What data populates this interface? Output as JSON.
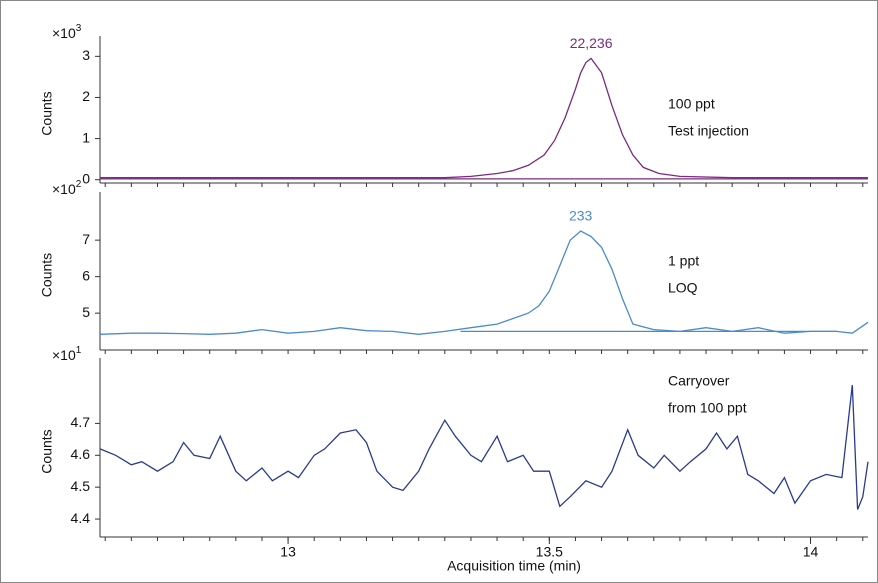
{
  "chart_data": [
    {
      "type": "line",
      "ylabel": "Counts",
      "y_multiplier": {
        "base": "×10",
        "exponent": "3"
      },
      "annotations": [
        "100 ppt",
        "Test injection"
      ],
      "peak_label": "22,236",
      "xlim": [
        12.64,
        14.11
      ],
      "ylim": [
        -0.08,
        3.3
      ],
      "yticks": [
        0,
        1,
        2,
        3
      ],
      "series": [
        {
          "color": "#7b2a7e",
          "x": [
            12.64,
            13.0,
            13.3,
            13.35,
            13.4,
            13.43,
            13.46,
            13.49,
            13.51,
            13.53,
            13.55,
            13.56,
            13.57,
            13.58,
            13.6,
            13.62,
            13.64,
            13.66,
            13.68,
            13.71,
            13.75,
            13.85,
            14.11
          ],
          "values": [
            0.05,
            0.05,
            0.05,
            0.08,
            0.15,
            0.22,
            0.35,
            0.6,
            0.95,
            1.5,
            2.2,
            2.6,
            2.85,
            2.95,
            2.6,
            1.8,
            1.1,
            0.6,
            0.3,
            0.15,
            0.08,
            0.05,
            0.05
          ]
        },
        {
          "color": "#7b2a7e",
          "x": [
            12.64,
            14.11
          ],
          "values": [
            0.02,
            0.02
          ]
        }
      ]
    },
    {
      "type": "line",
      "ylabel": "Counts",
      "y_multiplier": {
        "base": "×10",
        "exponent": "2"
      },
      "annotations": [
        "1 ppt",
        "LOQ"
      ],
      "peak_label": "233",
      "xlim": [
        12.64,
        14.11
      ],
      "ylim": [
        3.99,
        8.1
      ],
      "yticks": [
        5,
        6,
        7
      ],
      "series": [
        {
          "color": "#4a8cc9",
          "x": [
            12.64,
            12.7,
            12.75,
            12.8,
            12.85,
            12.9,
            12.95,
            13.0,
            13.05,
            13.1,
            13.15,
            13.2,
            13.25,
            13.3,
            13.35,
            13.4,
            13.43,
            13.46,
            13.48,
            13.5,
            13.52,
            13.54,
            13.56,
            13.58,
            13.6,
            13.62,
            13.64,
            13.66,
            13.7,
            13.75,
            13.8,
            13.85,
            13.9,
            13.95,
            14.0,
            14.05,
            14.08,
            14.11
          ],
          "values": [
            4.42,
            4.45,
            4.45,
            4.44,
            4.42,
            4.45,
            4.55,
            4.45,
            4.5,
            4.6,
            4.52,
            4.5,
            4.42,
            4.5,
            4.6,
            4.7,
            4.85,
            5.0,
            5.2,
            5.6,
            6.3,
            7.0,
            7.25,
            7.1,
            6.8,
            6.2,
            5.4,
            4.7,
            4.55,
            4.5,
            4.6,
            4.5,
            4.6,
            4.45,
            4.5,
            4.5,
            4.45,
            4.75
          ]
        },
        {
          "color": "#4a8cc9",
          "x": [
            13.33,
            14.05
          ],
          "values": [
            4.5,
            4.5
          ]
        }
      ]
    },
    {
      "type": "line",
      "ylabel": "Counts",
      "y_multiplier": {
        "base": "×10",
        "exponent": "1"
      },
      "annotations": [
        "Carryover",
        "from 100 ppt"
      ],
      "xlabel": "Acquisition time (min)",
      "xlim": [
        12.64,
        14.11
      ],
      "xticks": [
        13,
        13.5,
        14
      ],
      "ylim": [
        4.35,
        4.88
      ],
      "yticks": [
        4.4,
        4.5,
        4.6,
        4.7
      ],
      "series": [
        {
          "color": "#2a3a8f",
          "x": [
            12.64,
            12.67,
            12.7,
            12.72,
            12.75,
            12.78,
            12.8,
            12.82,
            12.85,
            12.87,
            12.9,
            12.92,
            12.95,
            12.97,
            13.0,
            13.02,
            13.05,
            13.07,
            13.1,
            13.13,
            13.15,
            13.17,
            13.2,
            13.22,
            13.25,
            13.27,
            13.3,
            13.32,
            13.35,
            13.37,
            13.4,
            13.42,
            13.45,
            13.47,
            13.5,
            13.52,
            13.54,
            13.57,
            13.6,
            13.62,
            13.65,
            13.67,
            13.7,
            13.72,
            13.75,
            13.77,
            13.8,
            13.82,
            13.84,
            13.86,
            13.88,
            13.9,
            13.93,
            13.95,
            13.97,
            14.0,
            14.03,
            14.06,
            14.08,
            14.09,
            14.1,
            14.11
          ],
          "values": [
            4.62,
            4.6,
            4.57,
            4.58,
            4.55,
            4.58,
            4.64,
            4.6,
            4.59,
            4.66,
            4.55,
            4.52,
            4.56,
            4.52,
            4.55,
            4.53,
            4.6,
            4.62,
            4.67,
            4.68,
            4.64,
            4.55,
            4.5,
            4.49,
            4.55,
            4.62,
            4.71,
            4.66,
            4.6,
            4.58,
            4.66,
            4.58,
            4.6,
            4.55,
            4.55,
            4.44,
            4.47,
            4.52,
            4.5,
            4.55,
            4.68,
            4.6,
            4.56,
            4.6,
            4.55,
            4.58,
            4.62,
            4.67,
            4.62,
            4.66,
            4.54,
            4.52,
            4.48,
            4.53,
            4.45,
            4.52,
            4.54,
            4.53,
            4.82,
            4.43,
            4.47,
            4.58
          ]
        }
      ]
    }
  ]
}
